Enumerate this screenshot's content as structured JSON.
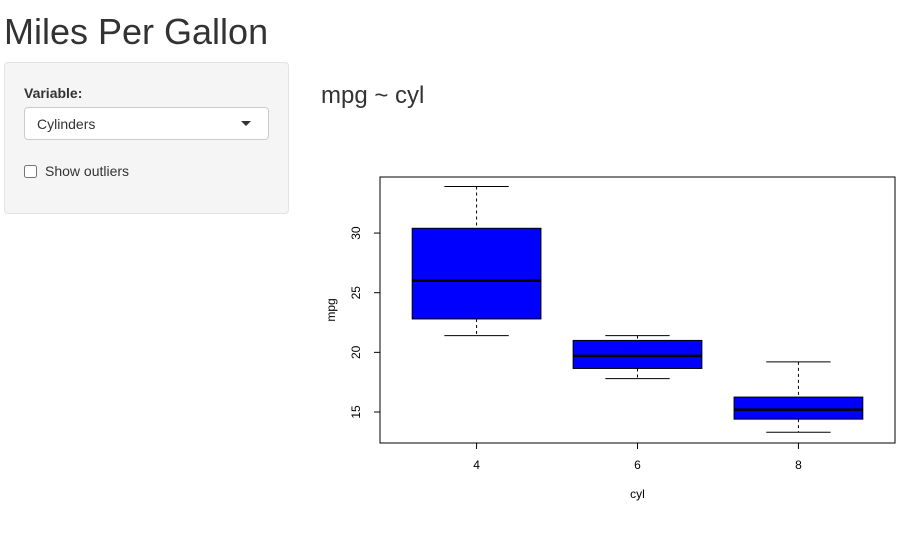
{
  "app": {
    "title": "Miles Per Gallon"
  },
  "sidebar": {
    "variable_label": "Variable:",
    "variable_select": {
      "selected": "Cylinders"
    },
    "outliers_checkbox": {
      "label": "Show outliers",
      "checked": false
    }
  },
  "main": {
    "plot_title": "mpg ~ cyl"
  },
  "colors": {
    "box_fill": "#0000ff",
    "text": "#333333"
  },
  "chart_data": {
    "type": "boxplot",
    "xlabel": "cyl",
    "ylabel": "mpg",
    "categories": [
      "4",
      "6",
      "8"
    ],
    "ylim": [
      12.4,
      34.7
    ],
    "yticks": [
      15,
      20,
      25,
      30
    ],
    "boxes": [
      {
        "category": "4",
        "min": 21.4,
        "q1": 22.8,
        "median": 26.0,
        "q3": 30.4,
        "max": 33.9
      },
      {
        "category": "6",
        "min": 17.8,
        "q1": 18.65,
        "median": 19.7,
        "q3": 21.0,
        "max": 21.4
      },
      {
        "category": "8",
        "min": 13.3,
        "q1": 14.4,
        "median": 15.2,
        "q3": 16.25,
        "max": 19.2
      }
    ]
  }
}
